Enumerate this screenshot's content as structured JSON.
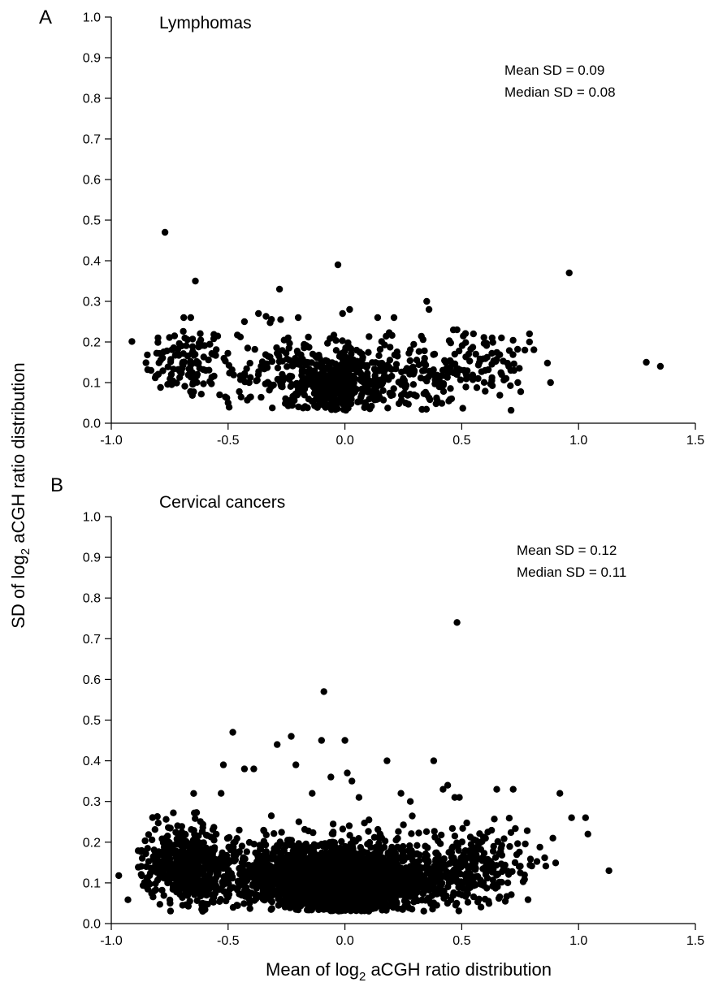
{
  "figure": {
    "ylabel_prefix": "SD of log",
    "ylabel_sub": "2",
    "ylabel_suffix": " aCGH ratio distribution",
    "xlabel_prefix": "Mean of log",
    "xlabel_sub": "2",
    "xlabel_suffix": " aCGH ratio distribution"
  },
  "chart_data": [
    {
      "type": "scatter",
      "panel_letter": "A",
      "title": "Lymphomas",
      "annotations": [
        "Mean SD = 0.09",
        "Median SD = 0.08"
      ],
      "xlim": [
        -1.0,
        1.5
      ],
      "ylim": [
        0.0,
        1.0
      ],
      "xticks": [
        "-1.0",
        "-0.5",
        "0.0",
        "0.5",
        "1.0",
        "1.5"
      ],
      "yticks": [
        "0.0",
        "0.1",
        "0.2",
        "0.3",
        "0.4",
        "0.5",
        "0.6",
        "0.7",
        "0.8",
        "0.9",
        "1.0"
      ],
      "grid": false,
      "points": [
        [
          -0.77,
          0.47
        ],
        [
          -0.64,
          0.35
        ],
        [
          -0.28,
          0.33
        ],
        [
          -0.03,
          0.39
        ],
        [
          0.96,
          0.37
        ],
        [
          1.29,
          0.15
        ],
        [
          1.35,
          0.14
        ],
        [
          0.88,
          0.1
        ],
        [
          0.79,
          0.22
        ],
        [
          0.79,
          0.2
        ],
        [
          0.77,
          0.18
        ],
        [
          0.74,
          0.1
        ],
        [
          0.71,
          0.13
        ],
        [
          0.69,
          0.11
        ],
        [
          0.67,
          0.21
        ],
        [
          0.63,
          0.21
        ],
        [
          0.6,
          0.13
        ],
        [
          0.57,
          0.11
        ],
        [
          0.56,
          0.17
        ],
        [
          0.55,
          0.22
        ],
        [
          0.35,
          0.3
        ],
        [
          0.36,
          0.28
        ],
        [
          0.21,
          0.26
        ],
        [
          0.14,
          0.26
        ],
        [
          0.02,
          0.28
        ],
        [
          -0.01,
          0.27
        ],
        [
          -0.37,
          0.27
        ],
        [
          -0.43,
          0.25
        ],
        [
          -0.66,
          0.26
        ],
        [
          -0.69,
          0.26
        ],
        [
          -0.83,
          0.13
        ],
        [
          -0.8,
          0.12
        ],
        [
          -0.5,
          0.05
        ],
        [
          -0.41,
          0.1
        ],
        [
          -0.2,
          0.26
        ],
        [
          0.48,
          0.23
        ],
        [
          0.47,
          0.17
        ]
      ]
    },
    {
      "type": "scatter",
      "panel_letter": "B",
      "title": "Cervical cancers",
      "annotations": [
        "Mean SD = 0.12",
        "Median SD = 0.11"
      ],
      "xlim": [
        -1.0,
        1.5
      ],
      "ylim": [
        0.0,
        1.0
      ],
      "xticks": [
        "-1.0",
        "-0.5",
        "0.0",
        "0.5",
        "1.0",
        "1.5"
      ],
      "yticks": [
        "0.0",
        "0.1",
        "0.2",
        "0.3",
        "0.4",
        "0.5",
        "0.6",
        "0.7",
        "0.8",
        "0.9",
        "1.0"
      ],
      "grid": false,
      "points": [
        [
          0.48,
          0.74
        ],
        [
          -0.09,
          0.57
        ],
        [
          -0.48,
          0.47
        ],
        [
          -0.23,
          0.46
        ],
        [
          -0.1,
          0.45
        ],
        [
          0.0,
          0.45
        ],
        [
          -0.29,
          0.44
        ],
        [
          -0.21,
          0.39
        ],
        [
          -0.52,
          0.39
        ],
        [
          -0.43,
          0.38
        ],
        [
          -0.39,
          0.38
        ],
        [
          0.18,
          0.4
        ],
        [
          0.38,
          0.4
        ],
        [
          0.01,
          0.37
        ],
        [
          0.03,
          0.35
        ],
        [
          0.92,
          0.32
        ],
        [
          0.97,
          0.26
        ],
        [
          1.03,
          0.26
        ],
        [
          1.04,
          0.22
        ],
        [
          1.13,
          0.13
        ],
        [
          -0.85,
          0.14
        ],
        [
          -0.79,
          0.12
        ],
        [
          -0.76,
          0.16
        ],
        [
          0.89,
          0.21
        ],
        [
          0.72,
          0.33
        ],
        [
          0.65,
          0.33
        ],
        [
          0.44,
          0.34
        ],
        [
          0.42,
          0.33
        ],
        [
          0.47,
          0.31
        ],
        [
          0.49,
          0.31
        ],
        [
          0.28,
          0.3
        ],
        [
          0.24,
          0.32
        ],
        [
          -0.53,
          0.32
        ],
        [
          -0.14,
          0.32
        ],
        [
          -0.06,
          0.36
        ],
        [
          0.06,
          0.31
        ],
        [
          -0.17,
          0.14
        ]
      ]
    }
  ]
}
